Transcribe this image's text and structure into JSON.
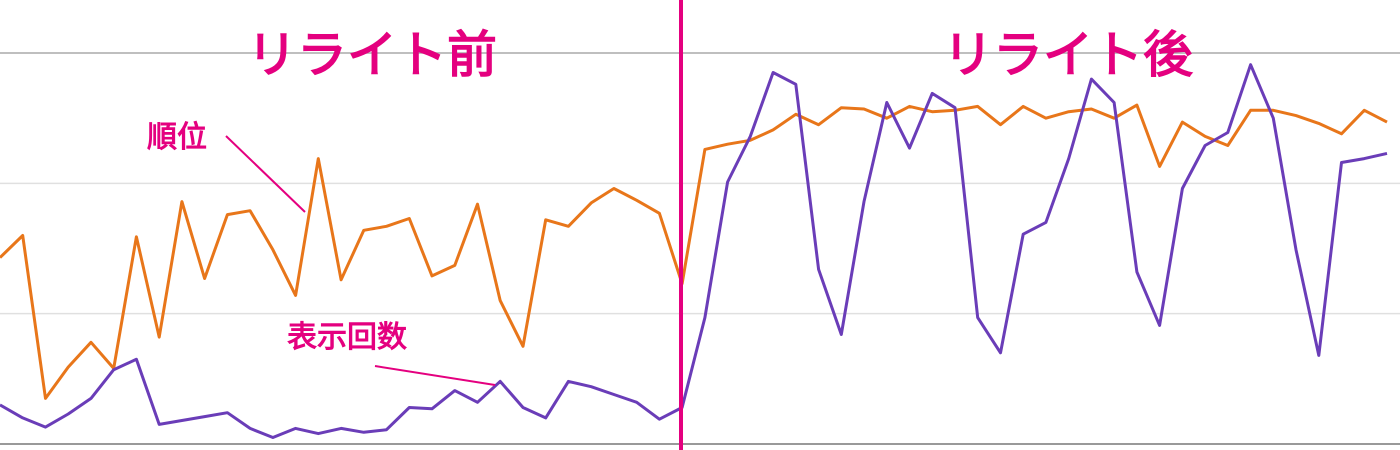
{
  "chart_data": {
    "type": "line",
    "annotations": [
      "リライト前",
      "リライト後"
    ],
    "series": [
      {
        "name": "順位",
        "color": "#e8761a",
        "values": [
          1.43,
          1.6,
          0.35,
          0.59,
          0.78,
          0.58,
          1.59,
          0.82,
          1.86,
          1.27,
          1.76,
          1.79,
          1.49,
          1.14,
          2.19,
          1.26,
          1.64,
          1.67,
          1.73,
          1.29,
          1.37,
          1.84,
          1.1,
          0.75,
          1.72,
          1.67,
          1.85,
          1.96,
          1.87,
          1.77,
          1.23,
          2.26,
          2.3,
          2.33,
          2.41,
          2.53,
          2.45,
          2.58,
          2.57,
          2.5,
          2.59,
          2.55,
          2.56,
          2.59,
          2.45,
          2.59,
          2.5,
          2.55,
          2.57,
          2.5,
          2.6,
          2.13,
          2.47,
          2.36,
          2.29,
          2.56,
          2.56,
          2.52,
          2.46,
          2.38,
          2.56,
          2.47
        ]
      },
      {
        "name": "表示回数",
        "color": "#6a3db8",
        "values": [
          0.3,
          0.2,
          0.13,
          0.23,
          0.35,
          0.57,
          0.65,
          0.15,
          0.18,
          0.21,
          0.24,
          0.12,
          0.05,
          0.12,
          0.08,
          0.12,
          0.09,
          0.11,
          0.28,
          0.27,
          0.41,
          0.32,
          0.48,
          0.28,
          0.2,
          0.48,
          0.44,
          0.38,
          0.32,
          0.19,
          0.28,
          0.97,
          2.01,
          2.36,
          2.85,
          2.76,
          1.34,
          0.84,
          1.86,
          2.62,
          2.27,
          2.69,
          2.58,
          0.97,
          0.7,
          1.61,
          1.7,
          2.19,
          2.8,
          2.62,
          1.32,
          0.91,
          1.96,
          2.29,
          2.39,
          2.91,
          2.5,
          1.49,
          0.68,
          2.16,
          2.19,
          2.23
        ]
      }
    ],
    "ylim": [
      0,
      3
    ],
    "yticks": [
      0,
      1,
      2,
      3
    ],
    "grid": true
  }
}
